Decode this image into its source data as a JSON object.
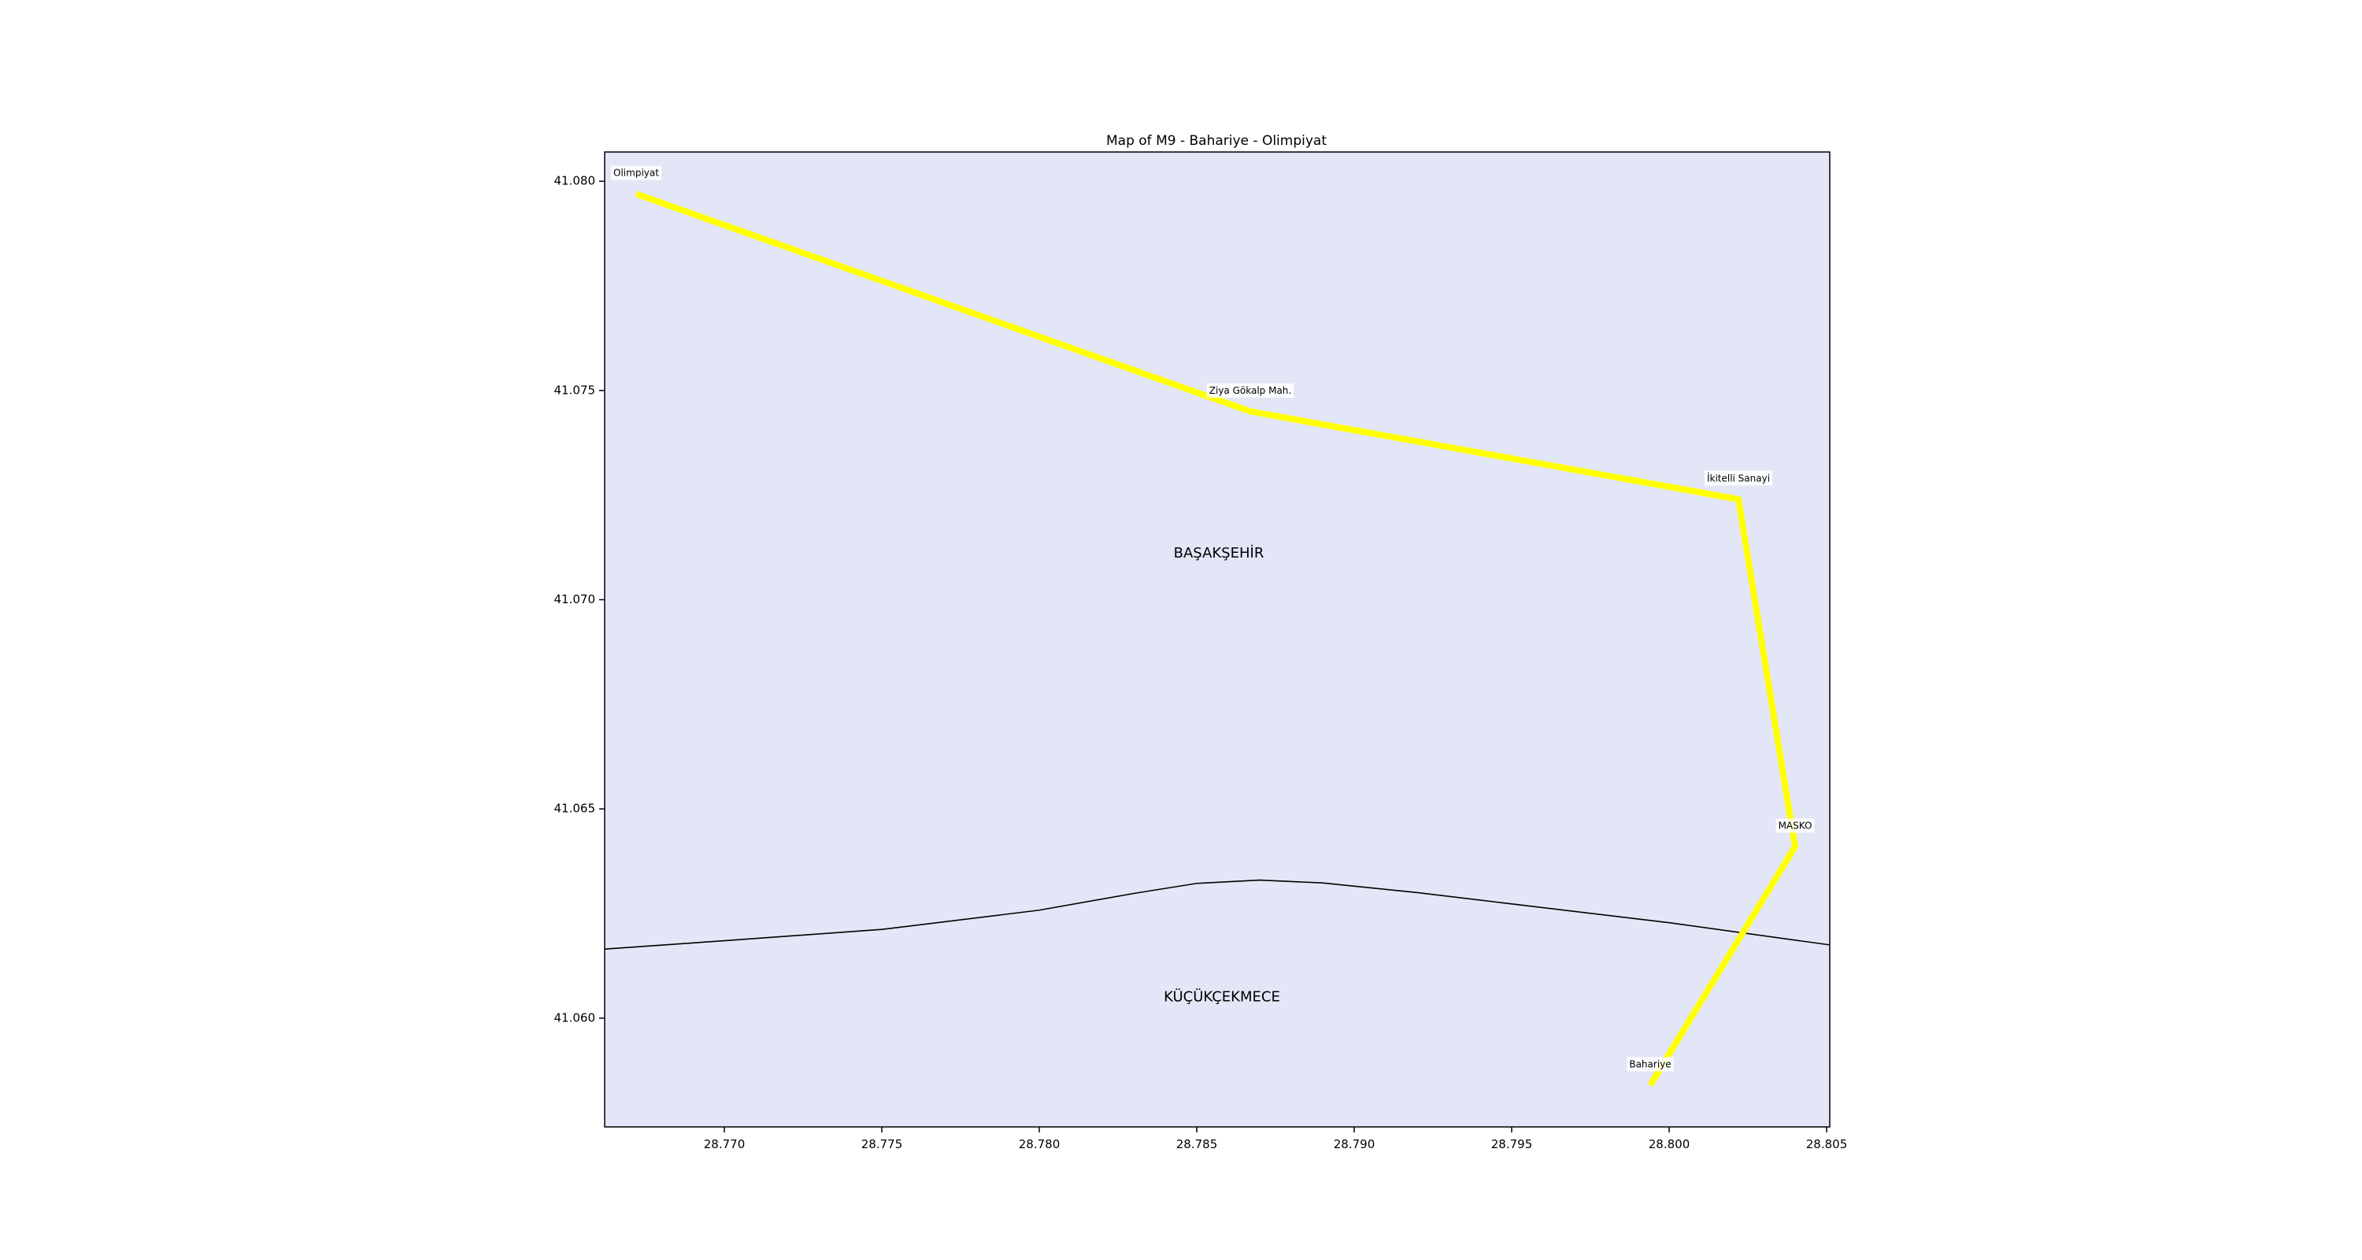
{
  "title": "Map of M9 - Bahariye - Olimpiyat",
  "chart_data": {
    "type": "line",
    "title": "Map of M9 - Bahariye - Olimpiyat",
    "xlabel": "",
    "ylabel": "",
    "xlim": [
      28.7662,
      28.8051
    ],
    "ylim": [
      41.0574,
      41.0807
    ],
    "xticks": [
      "28.770",
      "28.775",
      "28.780",
      "28.785",
      "28.790",
      "28.795",
      "28.800",
      "28.805"
    ],
    "yticks": [
      "41.060",
      "41.065",
      "41.070",
      "41.075",
      "41.080"
    ],
    "grid": false,
    "background_color": "#e3e6f6",
    "route": {
      "color": "#ffff00",
      "stations": [
        {
          "name": "Olimpiyat",
          "lon": 28.7672,
          "lat": 41.0797
        },
        {
          "name": "Ziya Gökalp Mah.",
          "lon": 28.7867,
          "lat": 41.0745
        },
        {
          "name": "İkitelli Sanayi",
          "lon": 28.8022,
          "lat": 41.0724
        },
        {
          "name": "MASKO",
          "lon": 28.804,
          "lat": 41.0641
        },
        {
          "name": "Bahariye",
          "lon": 28.7994,
          "lat": 41.0584
        }
      ]
    },
    "district_boundary": {
      "color": "#000000",
      "points": [
        [
          28.7662,
          41.06165
        ],
        [
          28.77,
          41.06185
        ],
        [
          28.775,
          41.06212
        ],
        [
          28.78,
          41.06258
        ],
        [
          28.783,
          41.06298
        ],
        [
          28.785,
          41.06322
        ],
        [
          28.787,
          41.0633
        ],
        [
          28.789,
          41.06323
        ],
        [
          28.792,
          41.063
        ],
        [
          28.795,
          41.06273
        ],
        [
          28.8,
          41.06228
        ],
        [
          28.8051,
          41.06175
        ]
      ]
    },
    "districts": [
      {
        "name": "BAŞAKŞEHİR",
        "lon": 28.7857,
        "lat": 41.0711
      },
      {
        "name": "KÜÇÜKÇEKMECE",
        "lon": 28.7858,
        "lat": 41.0605
      }
    ]
  }
}
